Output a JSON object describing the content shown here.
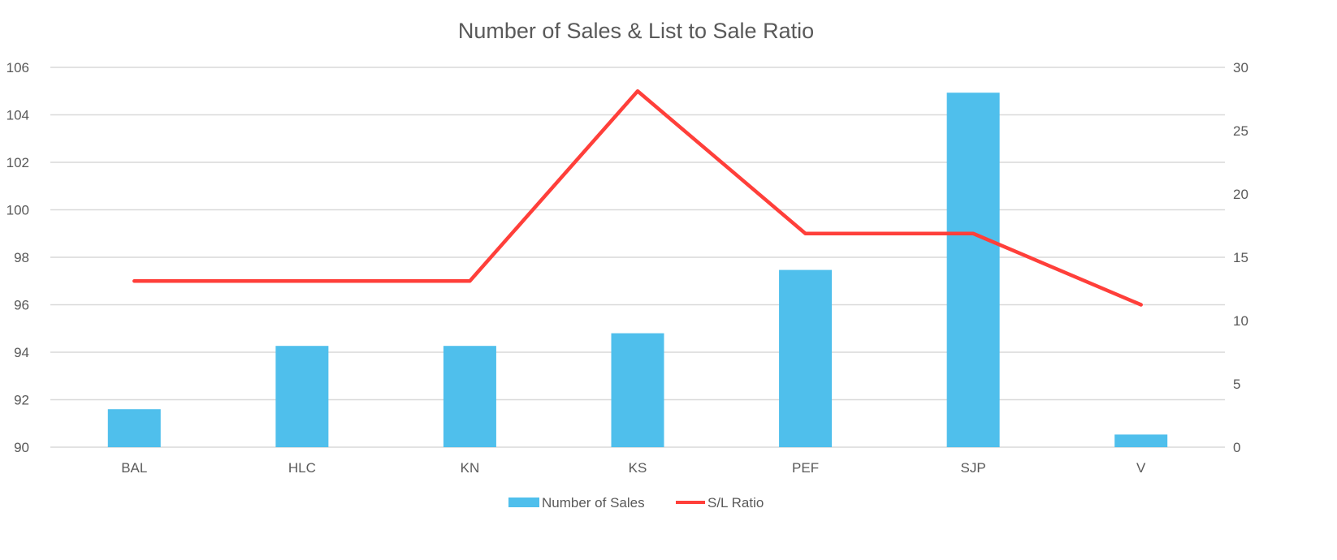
{
  "chart_data": {
    "type": "bar+line",
    "title": "Number of Sales & List to Sale Ratio",
    "categories": [
      "BAL",
      "HLC",
      "KN",
      "KS",
      "PEF",
      "SJP",
      "V"
    ],
    "series": [
      {
        "name": "Number of Sales",
        "type": "bar",
        "axis": "secondary",
        "color": "#4FBFEC",
        "values": [
          3,
          8,
          8,
          9,
          14,
          28,
          1
        ]
      },
      {
        "name": "S/L Ratio",
        "type": "line",
        "axis": "primary",
        "color": "#FF3F3A",
        "values": [
          97,
          97,
          97,
          105,
          99,
          99,
          96
        ]
      }
    ],
    "y_left": {
      "range": [
        90,
        106
      ],
      "ticks": [
        "90",
        "92",
        "94",
        "96",
        "98",
        "100",
        "102",
        "104",
        "106"
      ]
    },
    "y_right": {
      "range": [
        0,
        30
      ],
      "ticks": [
        "0",
        "5",
        "10",
        "15",
        "20",
        "25",
        "30"
      ]
    },
    "grid": true,
    "legend": "bottom"
  }
}
